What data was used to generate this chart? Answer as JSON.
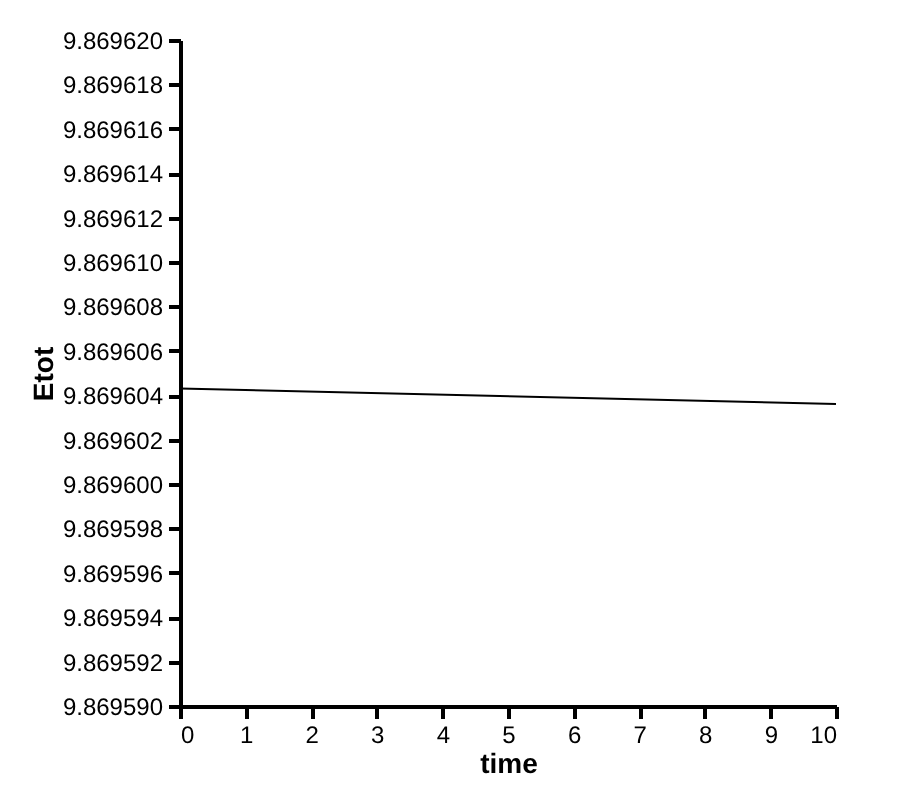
{
  "chart_data": {
    "type": "line",
    "xlabel": "time",
    "ylabel": "Etot",
    "x": [
      0,
      10
    ],
    "series": [
      {
        "color": "#000000",
        "values": [
          9.8696043,
          9.8696036
        ]
      }
    ],
    "xlim": [
      0,
      10
    ],
    "xticks": [
      0,
      1,
      2,
      3,
      4,
      5,
      6,
      7,
      8,
      9,
      10
    ],
    "ylim": [
      9.86959,
      9.86962
    ],
    "yticks": [
      {
        "value": 9.86959,
        "label": "9.869590"
      },
      {
        "value": 9.869592,
        "label": "9.869592"
      },
      {
        "value": 9.869594,
        "label": "9.869594"
      },
      {
        "value": 9.869596,
        "label": "9.869596"
      },
      {
        "value": 9.869598,
        "label": "9.869598"
      },
      {
        "value": 9.8696,
        "label": "9.869600"
      },
      {
        "value": 9.869602,
        "label": "9.869602"
      },
      {
        "value": 9.869604,
        "label": "9.869604"
      },
      {
        "value": 9.869606,
        "label": "9.869606"
      },
      {
        "value": 9.869608,
        "label": "9.869608"
      },
      {
        "value": 9.86961,
        "label": "9.869610"
      },
      {
        "value": 9.869612,
        "label": "9.869612"
      },
      {
        "value": 9.869614,
        "label": "9.869614"
      },
      {
        "value": 9.869616,
        "label": "9.869616"
      },
      {
        "value": 9.869618,
        "label": "9.869618"
      },
      {
        "value": 9.86962,
        "label": "9.869620"
      }
    ],
    "grid": false,
    "line_style": "solid",
    "marker": "none"
  }
}
